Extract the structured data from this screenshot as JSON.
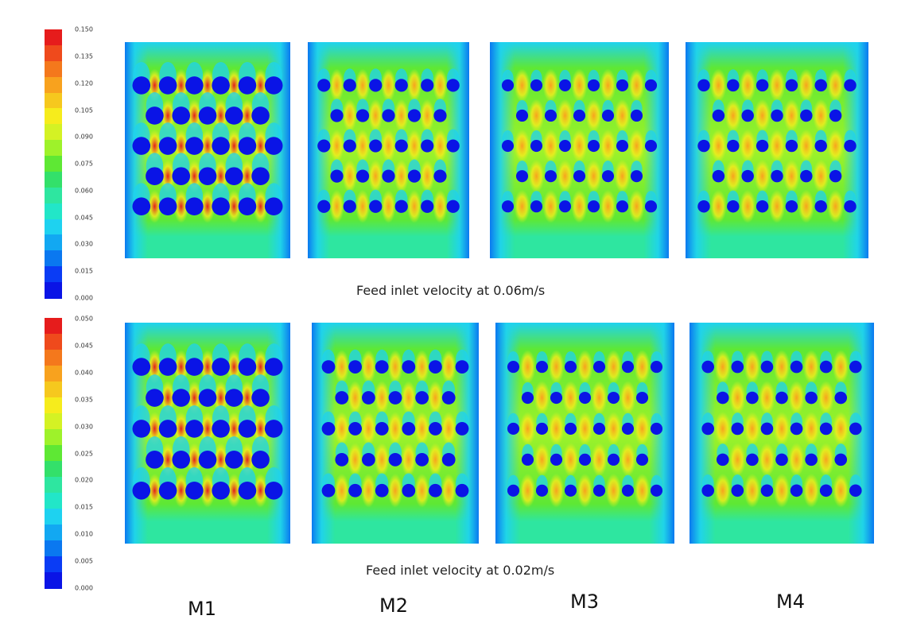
{
  "colors": {
    "scale": [
      "#0a14e6",
      "#0a3cf5",
      "#0a78f0",
      "#12a8f2",
      "#1ed2f0",
      "#22e6c8",
      "#2ee6a0",
      "#33e06a",
      "#5ee834",
      "#9ef22a",
      "#d4f224",
      "#f6ec1c",
      "#f6c81e",
      "#f8a21e",
      "#f4781c",
      "#ef4a1c",
      "#e61c1c"
    ],
    "field_background": "#2ee6a0",
    "obstacle": "#0a14e6"
  },
  "top": {
    "scale_ticks": [
      "0.150",
      "0.135",
      "0.120",
      "0.105",
      "0.090",
      "0.075",
      "0.060",
      "0.045",
      "0.030",
      "0.015",
      "0.000"
    ],
    "caption": "Feed inlet velocity at 0.06m/s"
  },
  "bottom": {
    "scale_ticks": [
      "0.050",
      "0.045",
      "0.040",
      "0.035",
      "0.030",
      "0.025",
      "0.020",
      "0.015",
      "0.010",
      "0.005",
      "0.000"
    ],
    "caption": "Feed inlet velocity at 0.02m/s"
  },
  "panels": [
    {
      "label": "M1",
      "obstacle_size": "large"
    },
    {
      "label": "M2",
      "obstacle_size": "medium"
    },
    {
      "label": "M3",
      "obstacle_size": "small"
    },
    {
      "label": "M4",
      "obstacle_size": "small"
    }
  ]
}
